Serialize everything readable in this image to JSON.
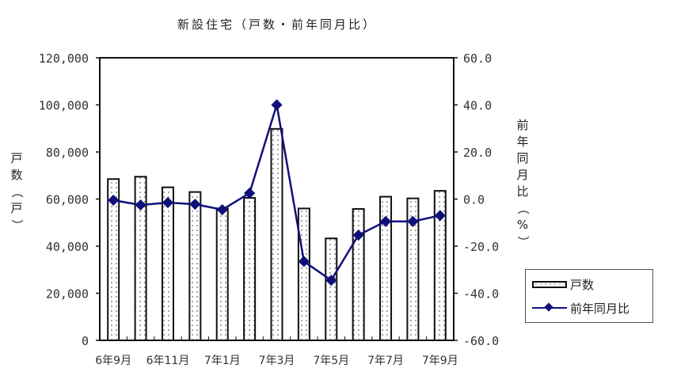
{
  "chart_data": {
    "type": "bar",
    "title": "新設住宅（戸数・前年同月比）",
    "categories": [
      "6年9月",
      "6年10月",
      "6年11月",
      "6年12月",
      "7年1月",
      "7年2月",
      "7年3月",
      "7年4月",
      "7年5月",
      "7年6月",
      "7年7月",
      "7年8月",
      "7年9月"
    ],
    "x_tick_labels": [
      "6年9月",
      "6年11月",
      "7年1月",
      "7年3月",
      "7年5月",
      "7年7月",
      "7年9月"
    ],
    "series": [
      {
        "name": "戸数",
        "type": "bar",
        "axis": "left",
        "values": [
          68500,
          69500,
          65000,
          63000,
          56000,
          60500,
          89800,
          56000,
          43300,
          55800,
          61000,
          60300,
          63500
        ]
      },
      {
        "name": "前年同月比",
        "type": "line",
        "axis": "right",
        "color": "#10107a",
        "marker": "diamond",
        "values": [
          -0.5,
          -2.5,
          -1.5,
          -2.2,
          -4.5,
          2.5,
          40.0,
          -26.5,
          -34.5,
          -15.3,
          -9.5,
          -9.5,
          -7.0
        ]
      }
    ],
    "ylabel": "戸数（戸）",
    "ylabel_right": "前年同月比（%）",
    "ylim": [
      0,
      120000
    ],
    "ylim_right": [
      -60,
      60
    ],
    "yticks": [
      "0",
      "20,000",
      "40,000",
      "60,000",
      "80,000",
      "100,000",
      "120,000"
    ],
    "yticks_right": [
      "-60.0",
      "-40.0",
      "-20.0",
      "0.0",
      "20.0",
      "40.0",
      "60.0"
    ],
    "grid": false,
    "legend_position": "right-bottom"
  },
  "labels": {
    "title": "新設住宅（戸数・前年同月比）",
    "ylabel_left": "戸数（戸）",
    "ylabel_right": "前年同月比（%）",
    "legend_bar": "戸数",
    "legend_line": "前年同月比"
  }
}
